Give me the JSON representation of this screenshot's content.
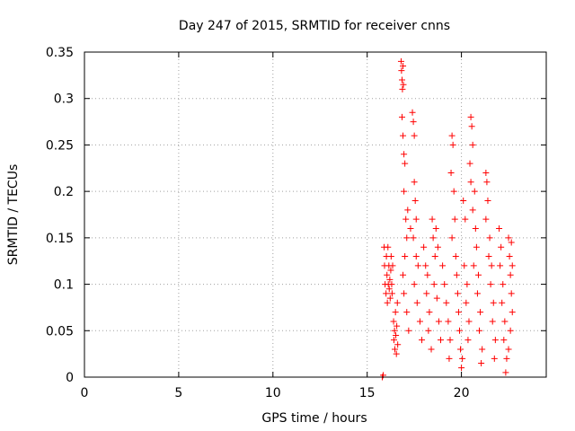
{
  "chart_data": {
    "type": "scatter",
    "title": "Day 247 of 2015, SRMTID for receiver cnns",
    "xlabel": "GPS time / hours",
    "ylabel": "SRMTID / TECUs",
    "xlim": [
      0,
      24.5
    ],
    "ylim": [
      0,
      0.35
    ],
    "xticks": [
      0,
      5,
      10,
      15,
      20
    ],
    "xtick_labels": [
      "0",
      "5",
      "10",
      "15",
      "20"
    ],
    "yticks": [
      0,
      0.05,
      0.1,
      0.15,
      0.2,
      0.25,
      0.3,
      0.35
    ],
    "ytick_labels": [
      "0",
      "0.05",
      "0.1",
      "0.15",
      "0.2",
      "0.25",
      "0.3",
      "0.35"
    ],
    "grid": true,
    "marker": "+",
    "colors": {
      "series": "#ff0000",
      "axis": "#000000",
      "grid": "#a0a0a0"
    },
    "series": [
      {
        "name": "SRMTID",
        "points": [
          [
            15.8,
            0.0
          ],
          [
            15.85,
            0.002
          ],
          [
            15.9,
            0.14
          ],
          [
            15.92,
            0.12
          ],
          [
            15.95,
            0.1
          ],
          [
            16.0,
            0.09
          ],
          [
            16.02,
            0.13
          ],
          [
            16.05,
            0.11
          ],
          [
            16.07,
            0.08
          ],
          [
            16.1,
            0.14
          ],
          [
            16.12,
            0.1
          ],
          [
            16.15,
            0.12
          ],
          [
            16.17,
            0.095
          ],
          [
            16.2,
            0.105
          ],
          [
            16.22,
            0.085
          ],
          [
            16.25,
            0.115
          ],
          [
            16.27,
            0.13
          ],
          [
            16.3,
            0.1
          ],
          [
            16.32,
            0.09
          ],
          [
            16.35,
            0.12
          ],
          [
            16.4,
            0.06
          ],
          [
            16.42,
            0.04
          ],
          [
            16.45,
            0.05
          ],
          [
            16.47,
            0.03
          ],
          [
            16.5,
            0.07
          ],
          [
            16.52,
            0.045
          ],
          [
            16.55,
            0.025
          ],
          [
            16.57,
            0.055
          ],
          [
            16.6,
            0.08
          ],
          [
            16.62,
            0.035
          ],
          [
            16.8,
            0.34
          ],
          [
            16.82,
            0.33
          ],
          [
            16.85,
            0.32
          ],
          [
            16.87,
            0.31
          ],
          [
            16.9,
            0.335
          ],
          [
            16.92,
            0.315
          ],
          [
            16.85,
            0.28
          ],
          [
            16.9,
            0.26
          ],
          [
            16.95,
            0.24
          ],
          [
            17.0,
            0.23
          ],
          [
            16.95,
            0.2
          ],
          [
            17.05,
            0.17
          ],
          [
            17.1,
            0.15
          ],
          [
            17.0,
            0.13
          ],
          [
            16.9,
            0.11
          ],
          [
            16.95,
            0.09
          ],
          [
            17.1,
            0.07
          ],
          [
            17.2,
            0.05
          ],
          [
            17.15,
            0.18
          ],
          [
            17.3,
            0.16
          ],
          [
            17.4,
            0.285
          ],
          [
            17.45,
            0.275
          ],
          [
            17.5,
            0.26
          ],
          [
            17.5,
            0.21
          ],
          [
            17.55,
            0.19
          ],
          [
            17.6,
            0.17
          ],
          [
            17.45,
            0.15
          ],
          [
            17.6,
            0.13
          ],
          [
            17.7,
            0.12
          ],
          [
            17.5,
            0.1
          ],
          [
            17.65,
            0.08
          ],
          [
            17.8,
            0.06
          ],
          [
            17.9,
            0.04
          ],
          [
            18.0,
            0.14
          ],
          [
            18.1,
            0.12
          ],
          [
            18.2,
            0.11
          ],
          [
            18.15,
            0.09
          ],
          [
            18.3,
            0.07
          ],
          [
            18.25,
            0.05
          ],
          [
            18.4,
            0.03
          ],
          [
            18.5,
            0.15
          ],
          [
            18.6,
            0.13
          ],
          [
            18.55,
            0.1
          ],
          [
            18.7,
            0.085
          ],
          [
            18.8,
            0.06
          ],
          [
            18.9,
            0.04
          ],
          [
            18.45,
            0.17
          ],
          [
            18.65,
            0.16
          ],
          [
            18.75,
            0.14
          ],
          [
            19.0,
            0.12
          ],
          [
            19.1,
            0.1
          ],
          [
            19.2,
            0.08
          ],
          [
            19.3,
            0.06
          ],
          [
            19.4,
            0.04
          ],
          [
            19.35,
            0.02
          ],
          [
            19.5,
            0.26
          ],
          [
            19.55,
            0.25
          ],
          [
            19.45,
            0.22
          ],
          [
            19.6,
            0.2
          ],
          [
            19.65,
            0.17
          ],
          [
            19.5,
            0.15
          ],
          [
            19.7,
            0.13
          ],
          [
            19.75,
            0.11
          ],
          [
            19.8,
            0.09
          ],
          [
            19.85,
            0.07
          ],
          [
            19.9,
            0.05
          ],
          [
            19.95,
            0.03
          ],
          [
            20.0,
            0.01
          ],
          [
            20.05,
            0.02
          ],
          [
            20.1,
            0.19
          ],
          [
            20.2,
            0.17
          ],
          [
            20.15,
            0.12
          ],
          [
            20.3,
            0.1
          ],
          [
            20.25,
            0.08
          ],
          [
            20.4,
            0.06
          ],
          [
            20.35,
            0.04
          ],
          [
            20.5,
            0.28
          ],
          [
            20.55,
            0.27
          ],
          [
            20.6,
            0.25
          ],
          [
            20.45,
            0.23
          ],
          [
            20.5,
            0.21
          ],
          [
            20.7,
            0.2
          ],
          [
            20.6,
            0.18
          ],
          [
            20.75,
            0.16
          ],
          [
            20.8,
            0.14
          ],
          [
            20.65,
            0.12
          ],
          [
            20.9,
            0.11
          ],
          [
            20.85,
            0.09
          ],
          [
            21.0,
            0.07
          ],
          [
            20.95,
            0.05
          ],
          [
            21.1,
            0.03
          ],
          [
            21.05,
            0.015
          ],
          [
            21.3,
            0.22
          ],
          [
            21.35,
            0.21
          ],
          [
            21.4,
            0.19
          ],
          [
            21.3,
            0.17
          ],
          [
            21.5,
            0.15
          ],
          [
            21.45,
            0.13
          ],
          [
            21.6,
            0.12
          ],
          [
            21.55,
            0.1
          ],
          [
            21.7,
            0.08
          ],
          [
            21.65,
            0.06
          ],
          [
            21.8,
            0.04
          ],
          [
            21.75,
            0.02
          ],
          [
            22.0,
            0.16
          ],
          [
            22.1,
            0.14
          ],
          [
            22.05,
            0.12
          ],
          [
            22.2,
            0.1
          ],
          [
            22.15,
            0.08
          ],
          [
            22.3,
            0.06
          ],
          [
            22.25,
            0.04
          ],
          [
            22.4,
            0.02
          ],
          [
            22.35,
            0.005
          ],
          [
            22.5,
            0.15
          ],
          [
            22.55,
            0.13
          ],
          [
            22.6,
            0.11
          ],
          [
            22.65,
            0.09
          ],
          [
            22.7,
            0.07
          ],
          [
            22.6,
            0.05
          ],
          [
            22.5,
            0.03
          ],
          [
            22.65,
            0.145
          ],
          [
            22.7,
            0.12
          ]
        ]
      }
    ]
  }
}
